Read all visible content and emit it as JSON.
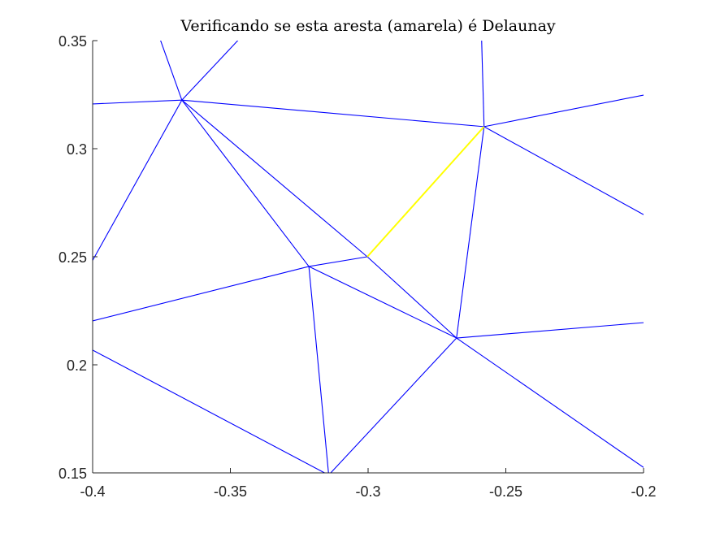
{
  "chart_data": {
    "type": "line",
    "title": "Verificando se esta aresta (amarela) é Delaunay",
    "xlabel": "",
    "ylabel": "",
    "xlim": [
      -0.4,
      -0.2
    ],
    "ylim": [
      0.15,
      0.35
    ],
    "grid": false,
    "x_ticks": [
      -0.4,
      -0.35,
      -0.3,
      -0.25,
      -0.2
    ],
    "x_tick_labels": [
      "-0.4",
      "-0.35",
      "-0.3",
      "-0.25",
      "-0.2"
    ],
    "y_ticks": [
      0.15,
      0.2,
      0.25,
      0.3,
      0.35
    ],
    "y_tick_labels": [
      "0.15",
      "0.2",
      "0.25",
      "0.3",
      "0.35"
    ],
    "colors": {
      "edges": "#0000ff",
      "highlight": "#ffff00",
      "axes": "#262626"
    },
    "series": [
      {
        "role": "triangulation-edges",
        "color": "#0000ff",
        "segments": [
          [
            [
              -0.4,
              0.3207
            ],
            [
              -0.3676,
              0.3225
            ]
          ],
          [
            [
              -0.3676,
              0.3225
            ],
            [
              -0.3756,
              0.351
            ]
          ],
          [
            [
              -0.3676,
              0.3225
            ],
            [
              -0.3466,
              0.351
            ]
          ],
          [
            [
              -0.3676,
              0.3225
            ],
            [
              -0.4,
              0.2483
            ]
          ],
          [
            [
              -0.3676,
              0.3225
            ],
            [
              -0.3215,
              0.2455
            ]
          ],
          [
            [
              -0.3676,
              0.3225
            ],
            [
              -0.3003,
              0.25
            ]
          ],
          [
            [
              -0.3676,
              0.3225
            ],
            [
              -0.2579,
              0.3102
            ]
          ],
          [
            [
              -0.2579,
              0.3102
            ],
            [
              -0.2588,
              0.351
            ]
          ],
          [
            [
              -0.2579,
              0.3102
            ],
            [
              -0.2,
              0.3248
            ]
          ],
          [
            [
              -0.2579,
              0.3102
            ],
            [
              -0.2,
              0.2695
            ]
          ],
          [
            [
              -0.2579,
              0.3102
            ],
            [
              -0.2679,
              0.2124
            ]
          ],
          [
            [
              -0.3003,
              0.25
            ],
            [
              -0.3215,
              0.2455
            ]
          ],
          [
            [
              -0.3003,
              0.25
            ],
            [
              -0.2679,
              0.2124
            ]
          ],
          [
            [
              -0.3215,
              0.2455
            ],
            [
              -0.4,
              0.2203
            ]
          ],
          [
            [
              -0.3215,
              0.2455
            ],
            [
              -0.2679,
              0.2124
            ]
          ],
          [
            [
              -0.3215,
              0.2455
            ],
            [
              -0.3143,
              0.149
            ]
          ],
          [
            [
              -0.2679,
              0.2124
            ],
            [
              -0.2,
              0.2195
            ]
          ],
          [
            [
              -0.2679,
              0.2124
            ],
            [
              -0.2,
              0.1525
            ]
          ],
          [
            [
              -0.2679,
              0.2124
            ],
            [
              -0.3143,
              0.149
            ]
          ],
          [
            [
              -0.4,
              0.2068
            ],
            [
              -0.3143,
              0.149
            ]
          ]
        ]
      },
      {
        "role": "edge-under-test",
        "color": "#ffff00",
        "segments": [
          [
            [
              -0.3003,
              0.25
            ],
            [
              -0.2579,
              0.3102
            ]
          ]
        ]
      }
    ]
  }
}
